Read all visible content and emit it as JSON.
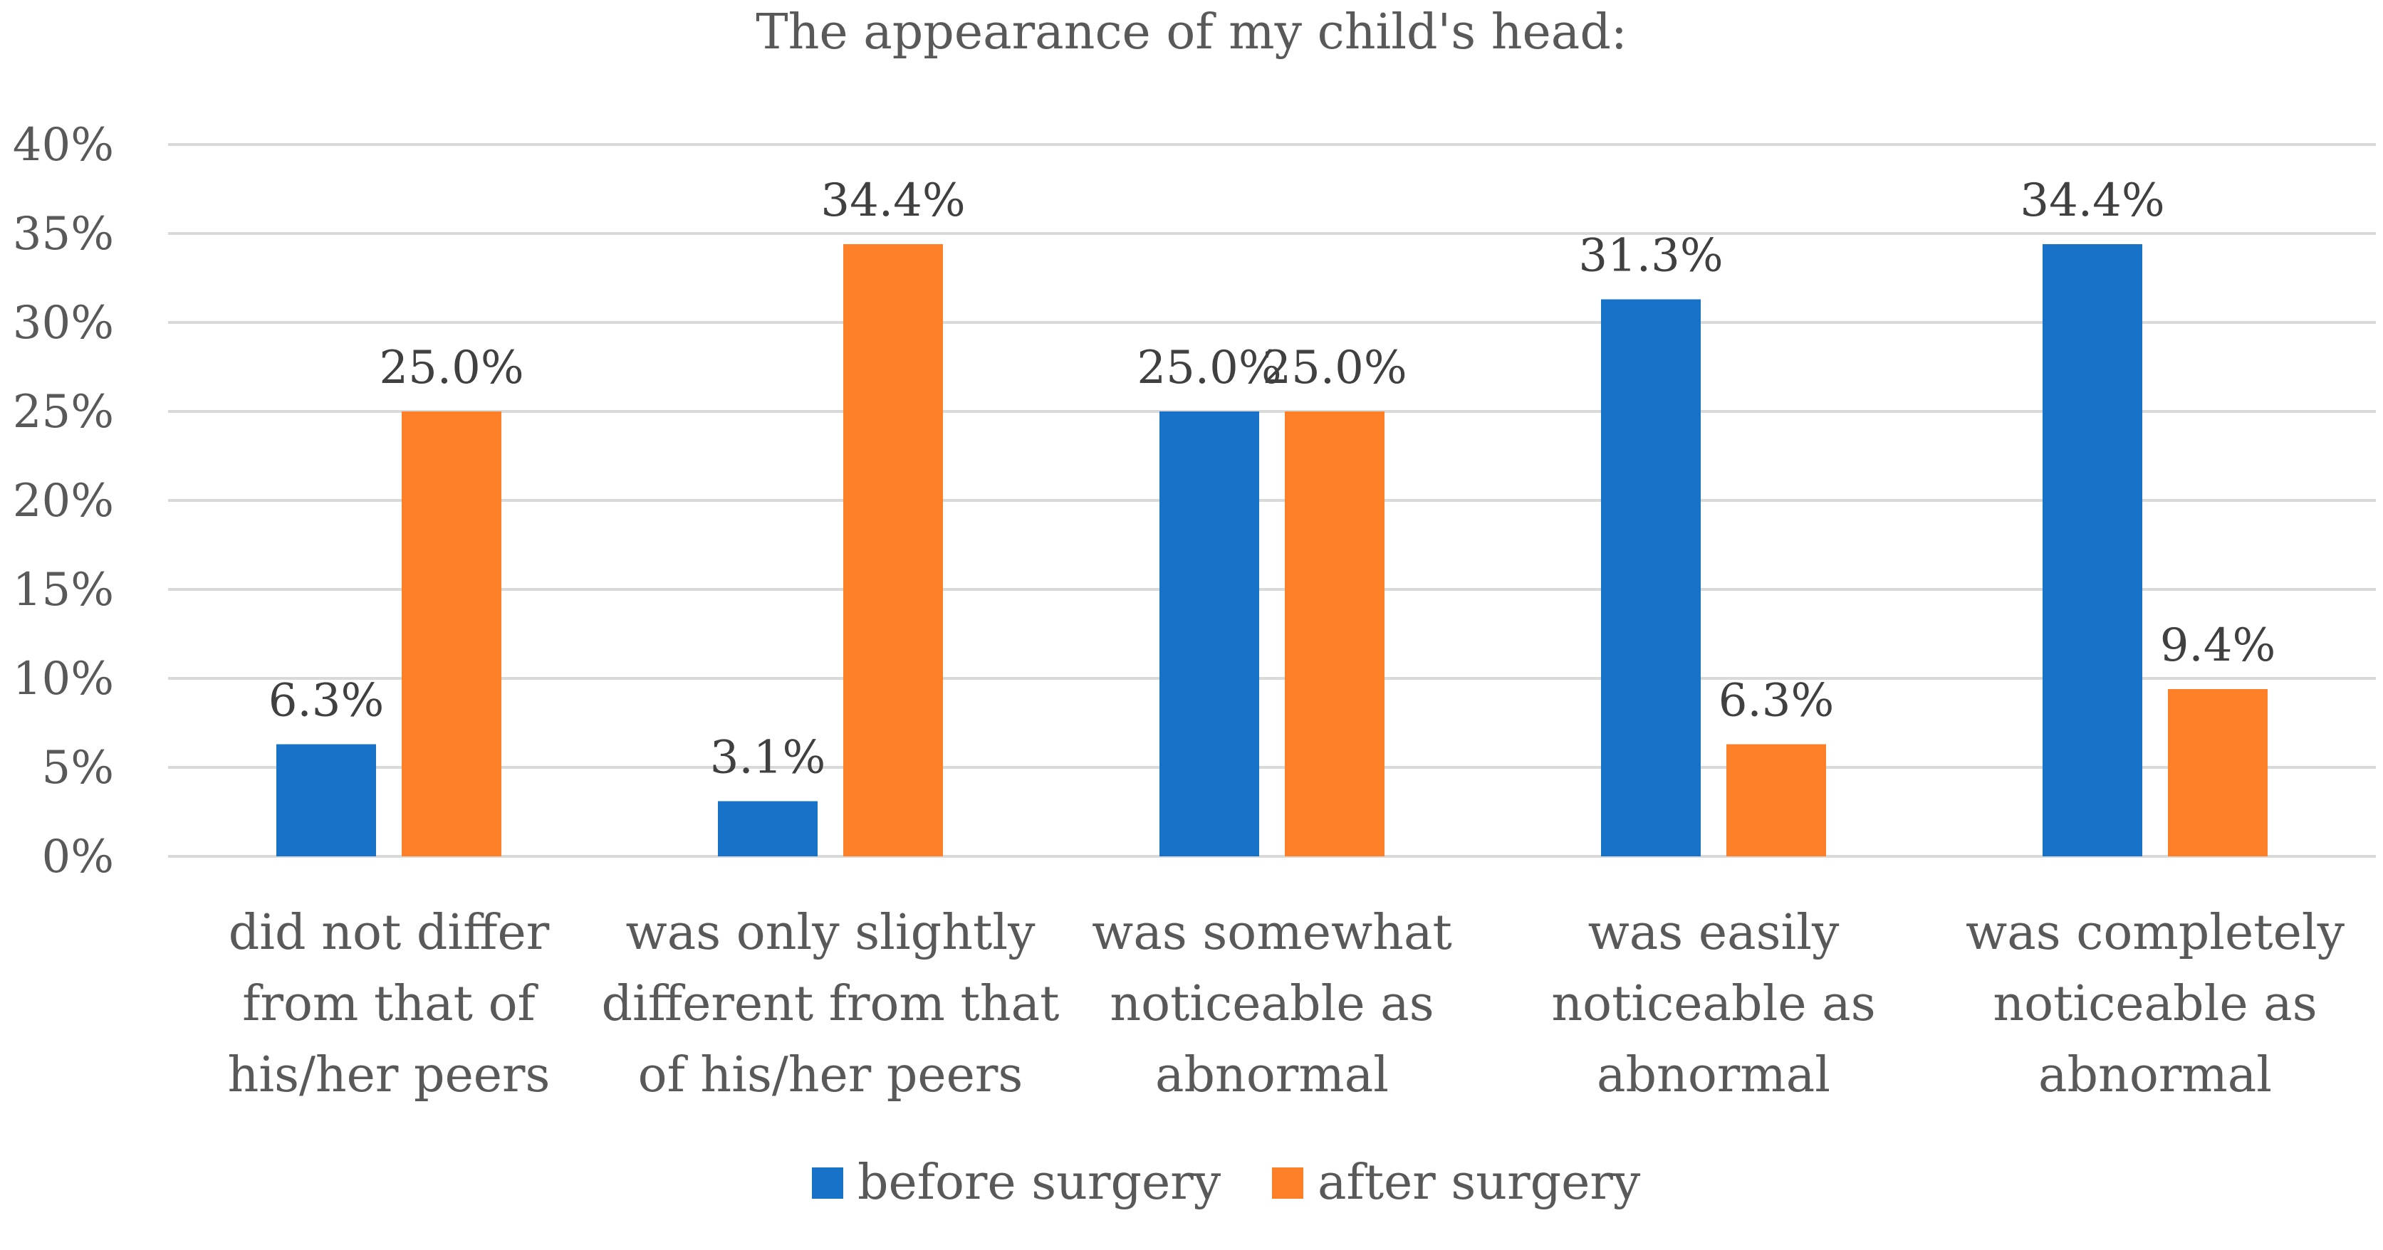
{
  "chart_data": {
    "type": "bar",
    "title": "The appearance of my child's head:",
    "categories": [
      [
        "did not differ",
        "from that of",
        "his/her peers"
      ],
      [
        "was only slightly",
        "different from that",
        "of his/her peers"
      ],
      [
        "was somewhat",
        "noticeable as",
        "abnormal"
      ],
      [
        "was easily",
        "noticeable as",
        "abnormal"
      ],
      [
        "was completely",
        "noticeable as",
        "abnormal"
      ]
    ],
    "series": [
      {
        "name": "before surgery",
        "color": "#1872c8",
        "values": [
          6.3,
          3.1,
          25.0,
          31.3,
          34.4
        ],
        "labels": [
          "6.3%",
          "3.1%",
          "25.0%",
          "31.3%",
          "34.4%"
        ]
      },
      {
        "name": "after surgery",
        "color": "#fd7f28",
        "values": [
          25.0,
          34.4,
          25.0,
          6.3,
          9.4
        ],
        "labels": [
          "25.0%",
          "34.4%",
          "25.0%",
          "6.3%",
          "9.4%"
        ]
      }
    ],
    "yticks": [
      "0%",
      "5%",
      "10%",
      "15%",
      "20%",
      "25%",
      "30%",
      "35%",
      "40%"
    ],
    "ylim": [
      0,
      40
    ],
    "xlabel": "",
    "ylabel": "",
    "grid": true,
    "legend_position": "bottom"
  }
}
